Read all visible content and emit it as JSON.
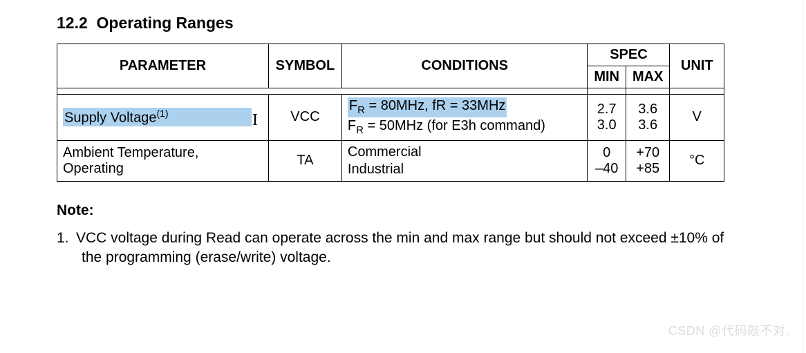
{
  "colors": {
    "highlight_bg": "#abd1ef",
    "text": "#000000",
    "border": "#000000",
    "background": "#ffffff",
    "watermark": "#dcdcdc"
  },
  "section": {
    "number": "12.2",
    "title": "Operating Ranges"
  },
  "table": {
    "headers": {
      "parameter": "PARAMETER",
      "symbol": "SYMBOL",
      "conditions": "CONDITIONS",
      "spec": "SPEC",
      "min": "MIN",
      "max": "MAX",
      "unit": "UNIT"
    },
    "rows": [
      {
        "parameter": "Supply Voltage",
        "param_sup": "(1)",
        "param_highlighted": true,
        "symbol": "VCC",
        "conditions": [
          {
            "prefix": "F",
            "sub": "R",
            "rest": "  = 80MHz,   fR = 33MHz",
            "highlighted": true
          },
          {
            "prefix": "F",
            "sub": "R",
            "rest": "  = 50MHz (for E3h command)",
            "highlighted": false
          }
        ],
        "min": [
          "2.7",
          "3.0"
        ],
        "max": [
          "3.6",
          "3.6"
        ],
        "unit": "V"
      },
      {
        "parameter": "Ambient Temperature, Operating",
        "param_sup": "",
        "param_highlighted": false,
        "symbol": "TA",
        "conditions": [
          {
            "prefix": "",
            "sub": "",
            "rest": "Commercial",
            "highlighted": false
          },
          {
            "prefix": "",
            "sub": "",
            "rest": "Industrial",
            "highlighted": false
          }
        ],
        "min": [
          "0",
          "–40"
        ],
        "max": [
          "+70",
          "+85"
        ],
        "unit": "°C"
      }
    ]
  },
  "note": {
    "heading": "Note:",
    "items": [
      {
        "num": "1.",
        "text_line1": "VCC voltage during Read can operate across the min and max range but should not exceed ±10% of",
        "text_line2": "the programming (erase/write) voltage."
      }
    ]
  },
  "watermark": "CSDN @代码敲不对.",
  "caret_glyph": "I"
}
